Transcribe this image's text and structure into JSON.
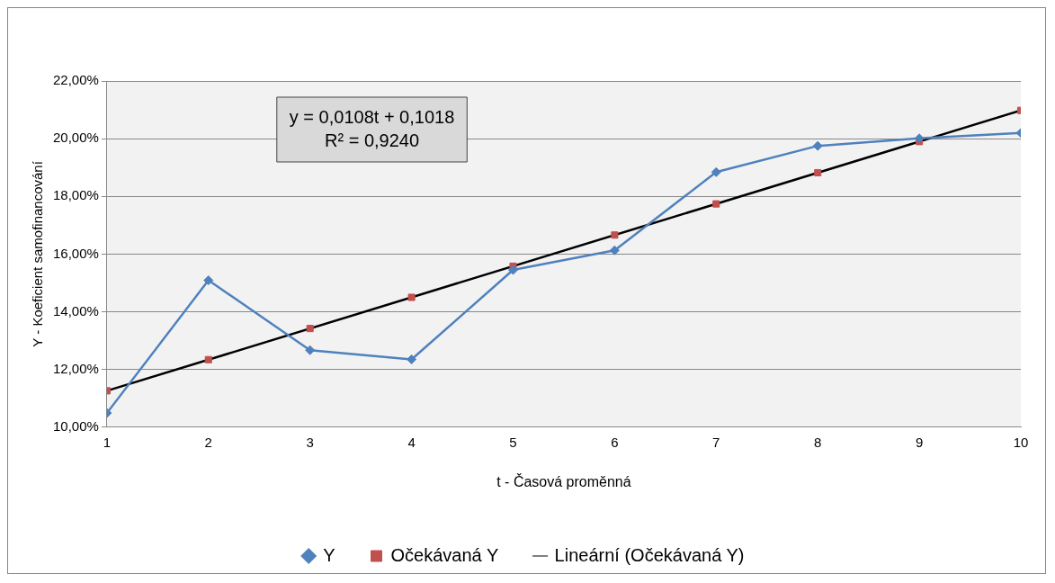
{
  "chart_data": {
    "type": "line",
    "xlabel": "t - Časová proměnná",
    "ylabel": "Y - Koeficient samofinancování",
    "x": [
      1,
      2,
      3,
      4,
      5,
      6,
      7,
      8,
      9,
      10
    ],
    "xlim": [
      1,
      10
    ],
    "xticks": [
      1,
      2,
      3,
      4,
      5,
      6,
      7,
      8,
      9,
      10
    ],
    "ylim": [
      10,
      22
    ],
    "yticks": [
      {
        "value": 10,
        "label": "10,00%"
      },
      {
        "value": 12,
        "label": "12,00%"
      },
      {
        "value": 14,
        "label": "14,00%"
      },
      {
        "value": 16,
        "label": "16,00%"
      },
      {
        "value": 18,
        "label": "18,00%"
      },
      {
        "value": 20,
        "label": "20,00%"
      },
      {
        "value": 22,
        "label": "22,00%"
      }
    ],
    "series": [
      {
        "name": "Y",
        "type": "line",
        "color": "#4f81bd",
        "marker": "diamond",
        "values": [
          10.49,
          15.09,
          12.67,
          12.35,
          15.45,
          16.13,
          18.84,
          19.75,
          20.01,
          20.2
        ]
      },
      {
        "name": "Očekávaná Y",
        "type": "scatter",
        "color": "#c0504d",
        "marker": "square",
        "values": [
          11.26,
          12.34,
          13.42,
          14.5,
          15.58,
          16.66,
          17.74,
          18.82,
          19.9,
          20.98
        ]
      },
      {
        "name": "Lineární (Očekávaná Y)",
        "type": "line",
        "color": "#000000",
        "marker": "none",
        "x": [
          1,
          10
        ],
        "values": [
          11.26,
          20.98
        ]
      }
    ],
    "annotations": [
      "y = 0,0108t + 0,1018",
      "R² = 0,9240"
    ],
    "grid": "y",
    "legend": "bottom"
  }
}
